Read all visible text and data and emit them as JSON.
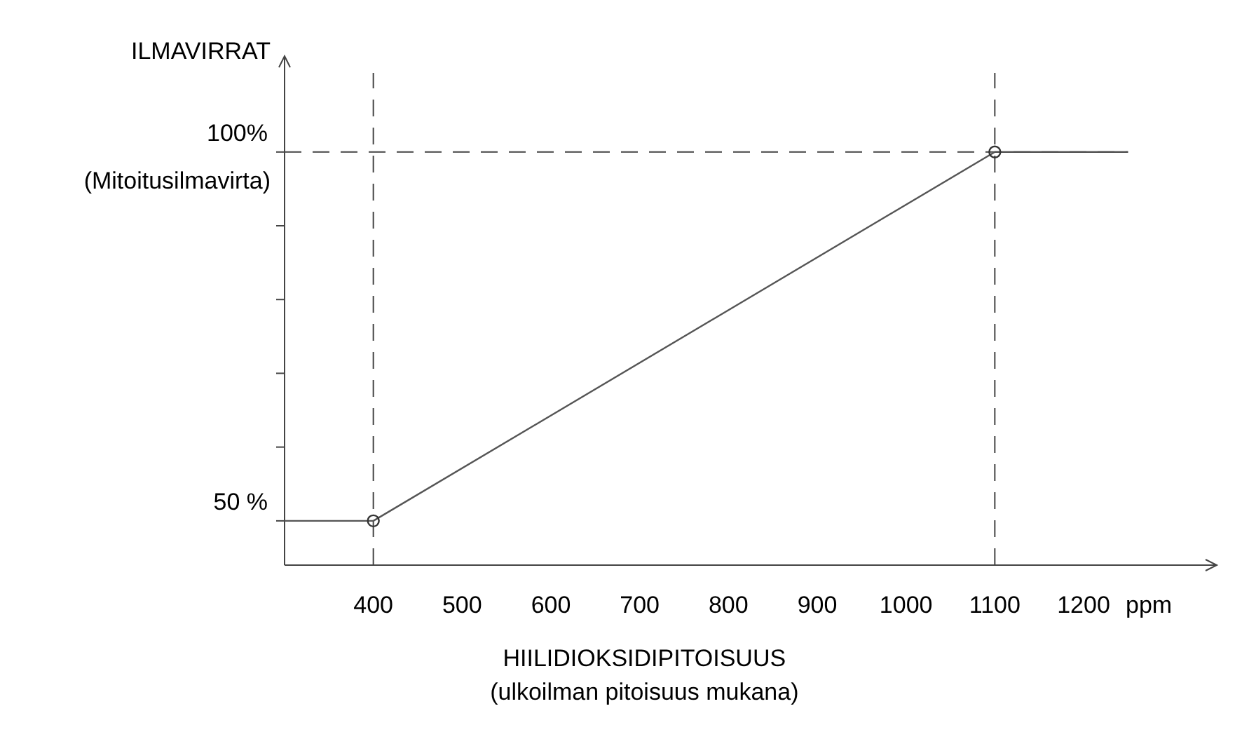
{
  "chart_data": {
    "type": "line",
    "xlabel": "HIILIDIOKSIDIPITOISUUS",
    "ylabel": "ILMAVIRRAT",
    "xlim": [
      300,
      1350
    ],
    "ylim": [
      44,
      113
    ],
    "xticks": [
      400,
      500,
      600,
      700,
      800,
      900,
      1000,
      1100,
      1200
    ],
    "yticks": [
      {
        "value": 50,
        "label": "50 %"
      },
      {
        "value": 60,
        "label": null
      },
      {
        "value": 70,
        "label": null
      },
      {
        "value": 80,
        "label": null
      },
      {
        "value": 90,
        "label": null
      },
      {
        "value": 100,
        "label": "100%"
      }
    ],
    "series": [
      {
        "color": "#555555",
        "line_style": "solid",
        "x": [
          300,
          400,
          1100,
          1250
        ],
        "values": [
          50,
          50,
          100,
          100
        ]
      },
      {
        "type": "scatter",
        "color": "#333333",
        "marker": "circle",
        "x": [
          400,
          1100
        ],
        "values": [
          50,
          100
        ]
      }
    ],
    "ref_lines": [
      {
        "axis": "x",
        "value": 400,
        "color": "#444444",
        "line_style": "dashed"
      },
      {
        "axis": "x",
        "value": 1100,
        "color": "#444444",
        "line_style": "dashed"
      },
      {
        "axis": "y",
        "value": 100,
        "color": "#444444",
        "line_style": "dashed"
      }
    ],
    "annotations": [
      "(Mitoitusilmavirta)",
      "(ulkoilman pitoisuus mukana)",
      "ppm"
    ]
  }
}
